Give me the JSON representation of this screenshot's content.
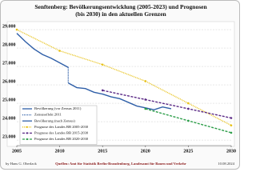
{
  "chart_data": {
    "type": "line",
    "title": "Senftenberg: Bevölkerungsentwicklung (2005-2023) und Prognosen (bis 2030) in den aktuellen Grenzen",
    "xlim": [
      2005,
      2030
    ],
    "xticks": [
      2005,
      2010,
      2015,
      2020,
      2025,
      2030
    ],
    "ylim": [
      22700,
      29350
    ],
    "yticks": [
      {
        "value": 23000,
        "label": "23.000"
      },
      {
        "value": 24000,
        "label": "24.000"
      },
      {
        "value": 25000,
        "label": "25.000"
      },
      {
        "value": 26000,
        "label": "26.000"
      },
      {
        "value": 27000,
        "label": "27.000"
      },
      {
        "value": 28000,
        "label": "28.000"
      },
      {
        "value": 29000,
        "label": "29.000"
      }
    ],
    "grid": true,
    "legend": "lower left",
    "series": [
      {
        "name": "Bevölkerung (vor Zensus 2011)",
        "color": "#2f5fa8",
        "dash": "solid",
        "markers": false,
        "x": [
          2005,
          2006,
          2007,
          2008,
          2009,
          2010,
          2011
        ],
        "values": [
          28800,
          28350,
          27950,
          27650,
          27450,
          27200,
          26950
        ]
      },
      {
        "name": "Zensuseffekt 2011",
        "color": "#2f5fa8",
        "dash": "dotted",
        "markers": false,
        "x": [
          2011,
          2011
        ],
        "values": [
          26950,
          26100
        ]
      },
      {
        "name": "Bevölkerung (nach Zensus)",
        "color": "#2f5fa8",
        "dash": "solid",
        "markers": false,
        "x": [
          2011,
          2012,
          2013,
          2014,
          2015,
          2016,
          2017,
          2018,
          2019,
          2020,
          2021,
          2022,
          2023
        ],
        "values": [
          26100,
          25850,
          25800,
          25600,
          25500,
          25350,
          25250,
          25050,
          24850,
          24750,
          24650,
          24800,
          24700
        ]
      },
      {
        "name": "Prognose des Landes BB 2005-2030",
        "color": "#e8c21a",
        "dash": "dotted",
        "markers": true,
        "x": [
          2005,
          2010,
          2015,
          2020,
          2025,
          2030
        ],
        "values": [
          29000,
          27850,
          27100,
          26200,
          25000,
          23800
        ]
      },
      {
        "name": "Prognose des Landes BB 2015-2030",
        "color": "#5b2a86",
        "dash": "dashed",
        "markers": true,
        "x": [
          2015,
          2020,
          2025,
          2030
        ],
        "values": [
          25700,
          25200,
          24700,
          24200
        ]
      },
      {
        "name": "Prognose des Landes BB 2020-2030",
        "color": "#2e9e4a",
        "dash": "dashed",
        "markers": true,
        "x": [
          2020,
          2025,
          2030
        ],
        "values": [
          24700,
          24050,
          23400
        ]
      }
    ],
    "footer": {
      "left": "by Hans G. Oberlack",
      "center": "Quellen: Amt für Statistik Berlin-Brandenburg, Landesamt für Bauen und Verkehr",
      "right": "10.08.2024"
    }
  }
}
